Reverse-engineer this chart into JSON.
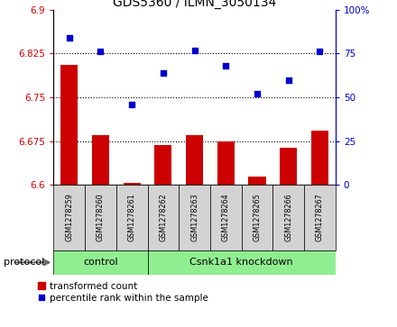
{
  "title": "GDS5360 / ILMN_3050134",
  "samples": [
    "GSM1278259",
    "GSM1278260",
    "GSM1278261",
    "GSM1278262",
    "GSM1278263",
    "GSM1278264",
    "GSM1278265",
    "GSM1278266",
    "GSM1278267"
  ],
  "bar_values": [
    6.805,
    6.685,
    6.603,
    6.668,
    6.685,
    6.675,
    6.614,
    6.663,
    6.693
  ],
  "scatter_values": [
    84,
    76,
    46,
    64,
    77,
    68,
    52,
    60,
    76
  ],
  "bar_color": "#cc0000",
  "scatter_color": "#0000cc",
  "ylim_left": [
    6.6,
    6.9
  ],
  "ylim_right": [
    0,
    100
  ],
  "yticks_left": [
    6.6,
    6.675,
    6.75,
    6.825,
    6.9
  ],
  "yticks_right": [
    0,
    25,
    50,
    75,
    100
  ],
  "hlines": [
    6.675,
    6.75,
    6.825
  ],
  "control_samples": 3,
  "control_label": "control",
  "knockdown_label": "Csnk1a1 knockdown",
  "protocol_label": "protocol",
  "legend_bar_label": "transformed count",
  "legend_scatter_label": "percentile rank within the sample",
  "bar_bottom": 6.6,
  "bar_width": 0.55,
  "sample_box_color": "#d3d3d3",
  "protocol_box_color": "#90ee90",
  "fig_width": 4.4,
  "fig_height": 3.63,
  "dpi": 100
}
